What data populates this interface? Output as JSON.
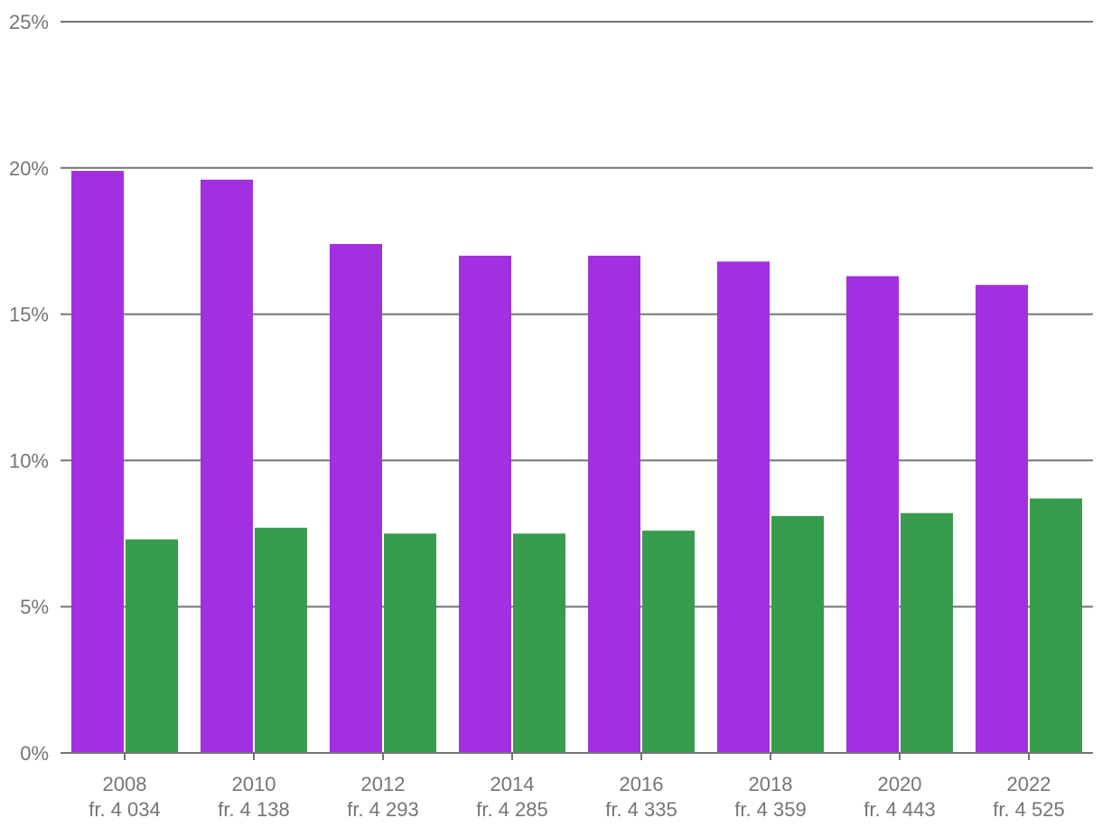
{
  "chart_data": {
    "type": "bar",
    "categories": [
      "2008",
      "2010",
      "2012",
      "2014",
      "2016",
      "2018",
      "2020",
      "2022"
    ],
    "category_sublabels": [
      "fr. 4 034",
      "fr. 4 138",
      "fr. 4 293",
      "fr. 4 285",
      "fr. 4 335",
      "fr. 4 359",
      "fr. 4 443",
      "fr. 4 525"
    ],
    "series": [
      {
        "values": [
          19.9,
          19.6,
          17.4,
          17.0,
          17.0,
          16.8,
          16.3,
          16.0
        ],
        "color": "#a22fe0"
      },
      {
        "values": [
          7.3,
          7.7,
          7.5,
          7.5,
          7.6,
          8.1,
          8.2,
          8.7
        ],
        "color": "#379c4e"
      }
    ],
    "ylim": [
      0,
      25
    ],
    "yticks": [
      0,
      5,
      10,
      15,
      20,
      25
    ],
    "ytick_labels": [
      "0%",
      "5%",
      "10%",
      "15%",
      "20%",
      "25%"
    ],
    "grid": true,
    "legend": "none",
    "title": "",
    "xlabel": "",
    "ylabel": ""
  }
}
